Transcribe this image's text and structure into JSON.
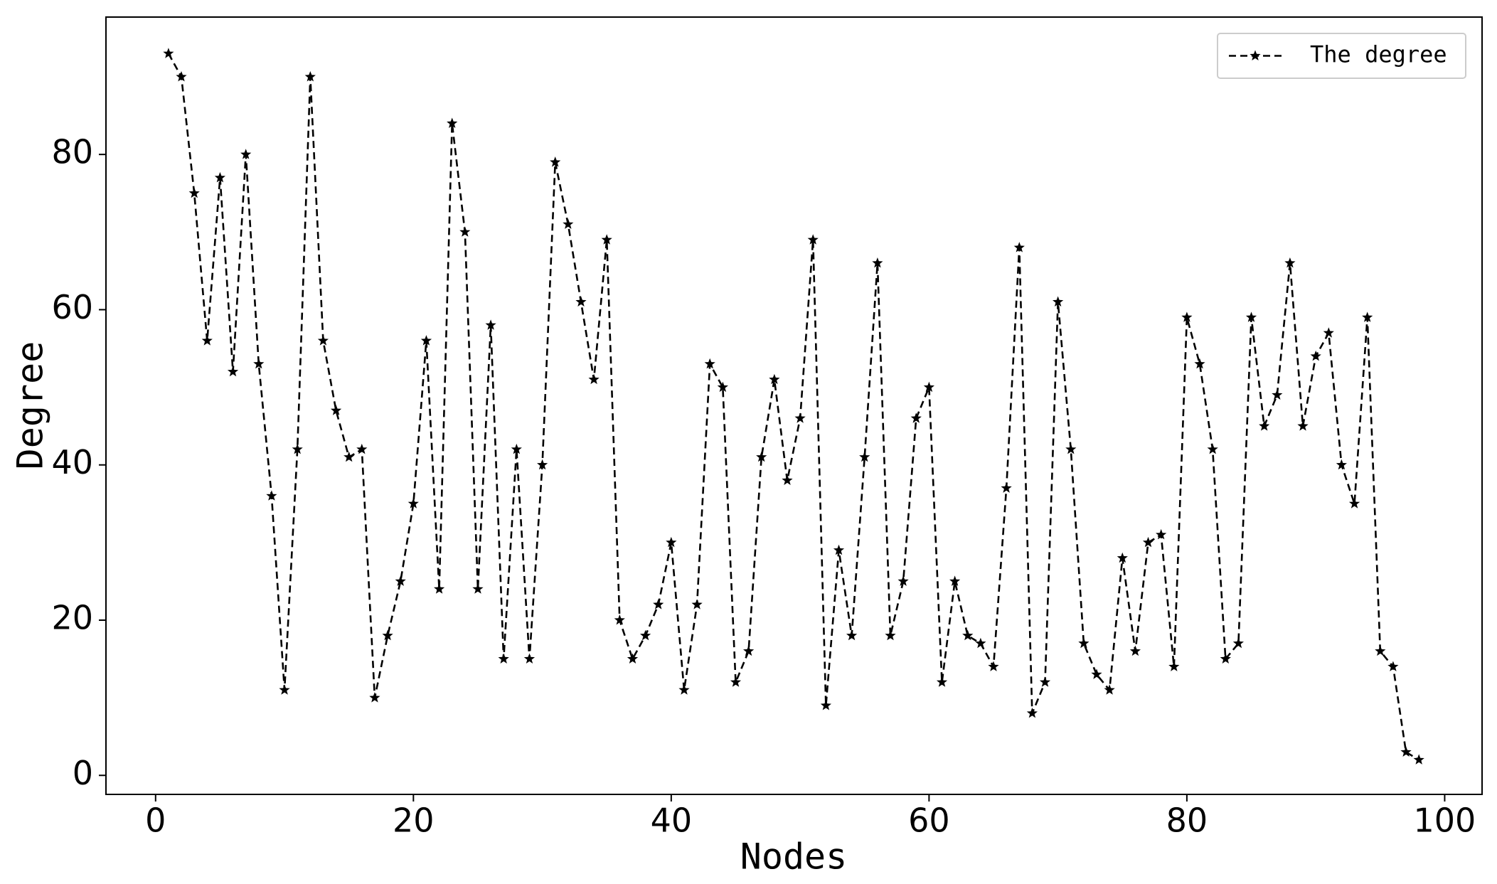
{
  "chart_data": {
    "type": "line",
    "xlabel": "Nodes",
    "ylabel": "Degree",
    "x": [
      1,
      2,
      3,
      4,
      5,
      6,
      7,
      8,
      9,
      10,
      11,
      12,
      13,
      14,
      15,
      16,
      17,
      18,
      19,
      20,
      21,
      22,
      23,
      24,
      25,
      26,
      27,
      28,
      29,
      30,
      31,
      32,
      33,
      34,
      35,
      36,
      37,
      38,
      39,
      40,
      41,
      42,
      43,
      44,
      45,
      46,
      47,
      48,
      49,
      50,
      51,
      52,
      53,
      54,
      55,
      56,
      57,
      58,
      59,
      60,
      61,
      62,
      63,
      64,
      65,
      66,
      67,
      68,
      69,
      70,
      71,
      72,
      73,
      74,
      75,
      76,
      77,
      78,
      79,
      80,
      81,
      82,
      83,
      84,
      85,
      86,
      87,
      88,
      89,
      90,
      91,
      92,
      93,
      94,
      95,
      96,
      97,
      98
    ],
    "series": [
      {
        "name": "The degree",
        "color": "#000000",
        "values": [
          93,
          90,
          75,
          56,
          77,
          52,
          80,
          53,
          36,
          11,
          42,
          90,
          56,
          47,
          41,
          42,
          10,
          18,
          25,
          35,
          56,
          24,
          84,
          70,
          24,
          58,
          15,
          42,
          15,
          40,
          79,
          71,
          61,
          51,
          69,
          20,
          15,
          18,
          22,
          30,
          11,
          22,
          53,
          50,
          12,
          16,
          41,
          51,
          38,
          46,
          69,
          9,
          29,
          18,
          41,
          66,
          18,
          25,
          46,
          50,
          12,
          25,
          18,
          17,
          14,
          37,
          68,
          8,
          12,
          61,
          42,
          17,
          13,
          11,
          28,
          16,
          30,
          31,
          14,
          59,
          53,
          42,
          15,
          17,
          59,
          45,
          49,
          66,
          45,
          54,
          57,
          40,
          35,
          59,
          16,
          14,
          3,
          2
        ]
      }
    ],
    "xlim": [
      -3.85,
      102.9
    ],
    "xticks": [
      0,
      20,
      40,
      60,
      80,
      100
    ],
    "ylim": [
      -2.45,
      97.7
    ],
    "yticks": [
      0,
      20,
      40,
      60,
      80
    ],
    "legend": "upper right"
  }
}
